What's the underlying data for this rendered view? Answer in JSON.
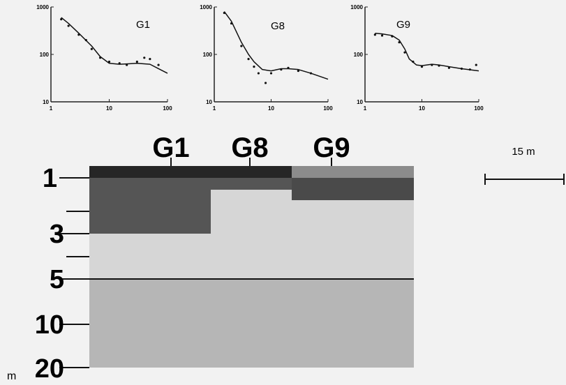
{
  "chart_data": [
    {
      "type": "line",
      "title": "G1",
      "log_scale": true,
      "xlim": [
        1,
        100
      ],
      "ylim": [
        10,
        1000
      ],
      "xticks": [
        1,
        10,
        100
      ],
      "yticks": [
        10,
        100,
        1000
      ],
      "series": [
        {
          "type": "line",
          "color": "#111111",
          "x": [
            1.5,
            2,
            3,
            5,
            7,
            10,
            15,
            20,
            30,
            50,
            70,
            100
          ],
          "values": [
            600,
            450,
            280,
            150,
            90,
            65,
            62,
            63,
            65,
            62,
            50,
            40
          ]
        },
        {
          "type": "scatter",
          "color": "#111111",
          "x": [
            1.5,
            2,
            3,
            4,
            5,
            7,
            10,
            15,
            20,
            30,
            40,
            50,
            70
          ],
          "values": [
            550,
            400,
            260,
            200,
            130,
            85,
            70,
            65,
            60,
            70,
            85,
            80,
            60
          ]
        }
      ]
    },
    {
      "type": "line",
      "title": "G8",
      "log_scale": true,
      "xlim": [
        1,
        100
      ],
      "ylim": [
        10,
        1000
      ],
      "xticks": [
        1,
        10,
        100
      ],
      "yticks": [
        10,
        100,
        1000
      ],
      "series": [
        {
          "type": "line",
          "color": "#111111",
          "x": [
            1.5,
            2,
            3,
            4,
            5,
            7,
            10,
            15,
            20,
            30,
            50,
            100
          ],
          "values": [
            800,
            500,
            180,
            100,
            70,
            48,
            45,
            50,
            50,
            48,
            40,
            30
          ]
        },
        {
          "type": "scatter",
          "color": "#111111",
          "x": [
            1.5,
            2,
            3,
            4,
            5,
            6,
            8,
            10,
            15,
            20,
            30,
            50
          ],
          "values": [
            750,
            450,
            150,
            80,
            55,
            40,
            25,
            40,
            48,
            52,
            45,
            40
          ]
        }
      ]
    },
    {
      "type": "line",
      "title": "G9",
      "log_scale": true,
      "xlim": [
        1,
        100
      ],
      "ylim": [
        10,
        1000
      ],
      "xticks": [
        1,
        10,
        100
      ],
      "yticks": [
        10,
        100,
        1000
      ],
      "series": [
        {
          "type": "line",
          "color": "#111111",
          "x": [
            1.5,
            2,
            3,
            4,
            5,
            6,
            8,
            10,
            15,
            20,
            30,
            50,
            100
          ],
          "values": [
            280,
            270,
            250,
            200,
            130,
            80,
            60,
            58,
            62,
            60,
            55,
            50,
            45
          ]
        },
        {
          "type": "scatter",
          "color": "#111111",
          "x": [
            1.5,
            2,
            3,
            4,
            5,
            7,
            10,
            15,
            20,
            30,
            50,
            70,
            90
          ],
          "values": [
            260,
            250,
            240,
            180,
            110,
            70,
            55,
            60,
            58,
            52,
            50,
            48,
            60
          ]
        }
      ]
    }
  ],
  "section": {
    "stations": [
      "G1",
      "G8",
      "G9"
    ],
    "depth_labels": [
      "1",
      "3",
      "5",
      "10",
      "20"
    ],
    "depth_unit": "m",
    "scale_bar": "15 m"
  }
}
